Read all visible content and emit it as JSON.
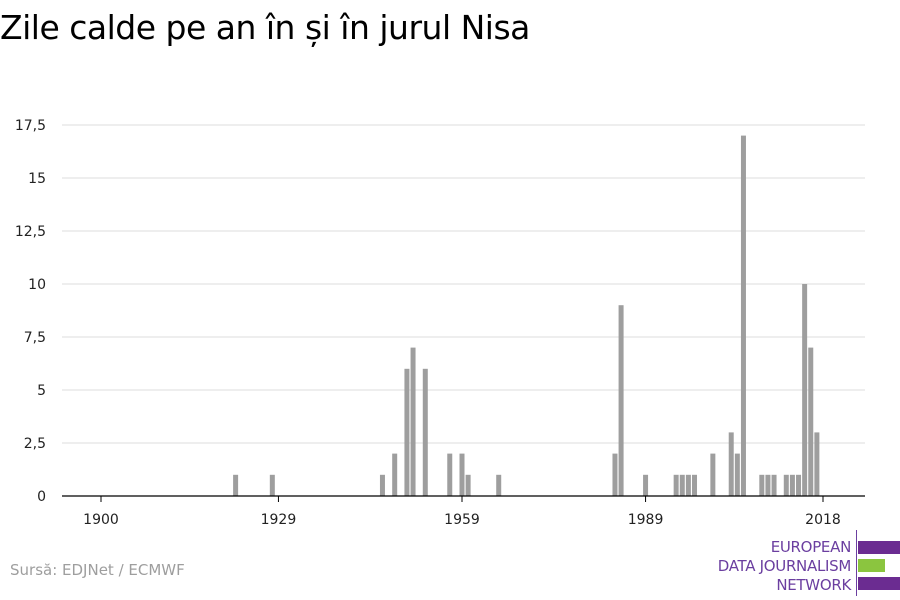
{
  "title": "Zile calde pe an în și în jurul Nisa",
  "source": "Sursă: EDJNet / ECMWF",
  "logo": {
    "lines": [
      "EUROPEAN",
      "DATA JOURNALISM",
      "NETWORK"
    ],
    "colors": {
      "purple": "#6b2c91",
      "green": "#8bc53f"
    }
  },
  "colors": {
    "bar": "#9e9e9e",
    "grid": "#dddddd",
    "axis": "#000000"
  },
  "chart_data": {
    "type": "bar",
    "title": "Zile calde pe an în și în jurul Nisa",
    "xlabel": "",
    "ylabel": "",
    "ylim": [
      0,
      17.5
    ],
    "yticks": [
      0,
      2.5,
      5,
      7.5,
      10,
      12.5,
      15,
      17.5
    ],
    "ytick_labels": [
      "0",
      "2,5",
      "5",
      "7,5",
      "10",
      "12,5",
      "15",
      "17,5"
    ],
    "xticks": [
      1900,
      1929,
      1959,
      1989,
      2018
    ],
    "xlim": [
      1900,
      2018
    ],
    "grid": true,
    "x": [
      1922,
      1928,
      1946,
      1948,
      1950,
      1951,
      1953,
      1957,
      1959,
      1960,
      1965,
      1984,
      1985,
      1989,
      1994,
      1995,
      1996,
      1997,
      2000,
      2003,
      2004,
      2005,
      2008,
      2009,
      2010,
      2012,
      2013,
      2014,
      2015,
      2016,
      2017
    ],
    "values": [
      1,
      1,
      1,
      2,
      6,
      7,
      6,
      2,
      2,
      1,
      1,
      2,
      9,
      1,
      1,
      1,
      1,
      1,
      2,
      3,
      2,
      17,
      1,
      1,
      1,
      1,
      1,
      1,
      10,
      7,
      3
    ]
  }
}
